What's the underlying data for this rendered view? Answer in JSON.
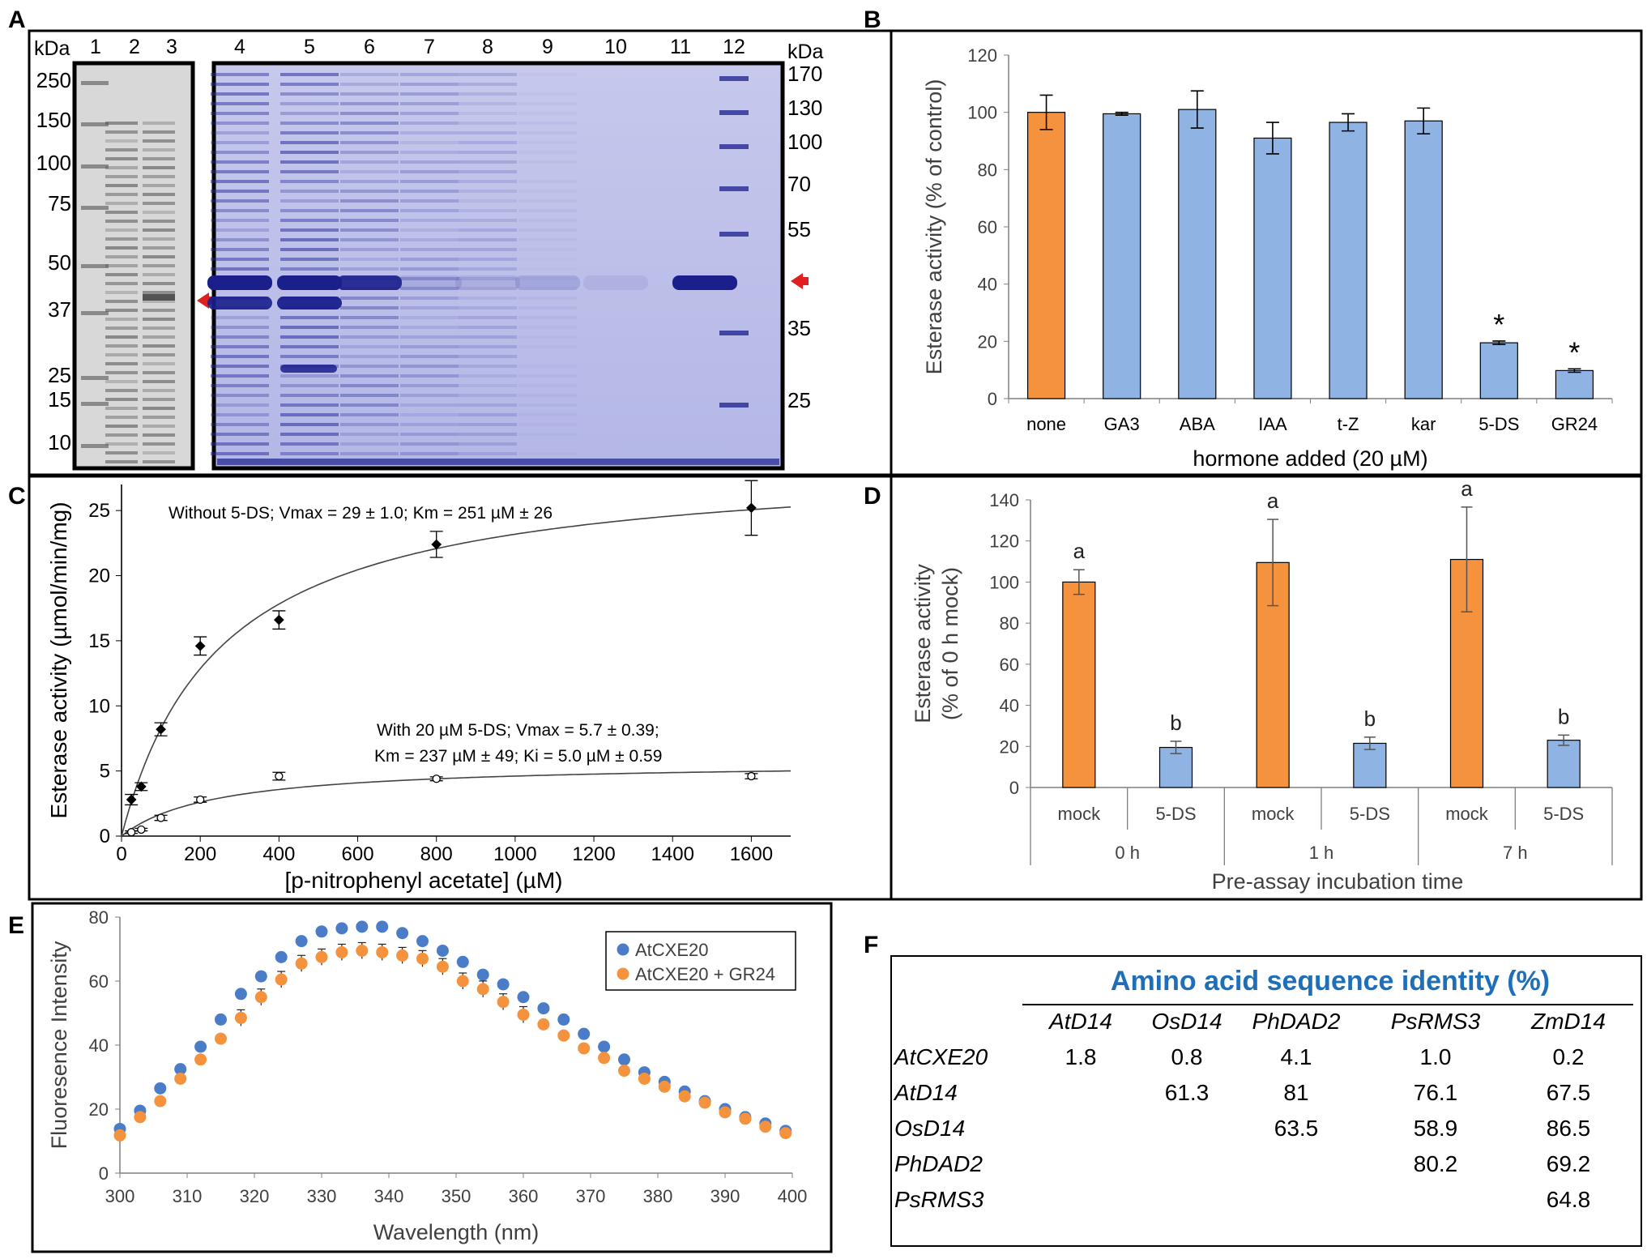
{
  "panel_labels": {
    "A": "A",
    "B": "B",
    "C": "C",
    "D": "D",
    "E": "E",
    "F": "F"
  },
  "gel": {
    "left_unit": "kDa",
    "right_unit": "kDa",
    "lanes": [
      "1",
      "2",
      "3",
      "4",
      "5",
      "6",
      "7",
      "8",
      "9",
      "10",
      "11",
      "12"
    ],
    "left_markers": [
      "250",
      "150",
      "100",
      "75",
      "50",
      "37",
      "25",
      "15",
      "10"
    ],
    "right_markers": [
      "170",
      "130",
      "100",
      "70",
      "55",
      "35",
      "25"
    ]
  },
  "chart_data": [
    {
      "id": "B",
      "type": "bar",
      "categories": [
        "none",
        "GA3",
        "ABA",
        "IAA",
        "t-Z",
        "kar",
        "5-DS",
        "GR24"
      ],
      "values": [
        100,
        99.5,
        101,
        91,
        96.5,
        97,
        19.5,
        9.8
      ],
      "errors": [
        6,
        0.5,
        6.5,
        5.5,
        3,
        4.5,
        0.6,
        0.6
      ],
      "significance": [
        "",
        "",
        "",
        "",
        "",
        "",
        "*",
        "*"
      ],
      "colors": [
        "#f4923e",
        "#8fb4e3",
        "#8fb4e3",
        "#8fb4e3",
        "#8fb4e3",
        "#8fb4e3",
        "#8fb4e3",
        "#8fb4e3"
      ],
      "xlabel": "hormone added (20  µM)",
      "ylabel": "Esterase activity (% of control)",
      "ylim": [
        0,
        120
      ],
      "yticks": [
        "0",
        "20",
        "40",
        "60",
        "80",
        "100",
        "120"
      ]
    },
    {
      "id": "C",
      "type": "scatter",
      "xlabel": "[p-nitrophenyl acetate] (µM)",
      "ylabel": "Esterase activity (µmol/min/mg)",
      "xlim": [
        0,
        1700
      ],
      "ylim": [
        0,
        27
      ],
      "xticks": [
        "0",
        "200",
        "400",
        "600",
        "800",
        "1000",
        "1200",
        "1400",
        "1600"
      ],
      "yticks": [
        "0",
        "5",
        "10",
        "15",
        "20",
        "25"
      ],
      "series": [
        {
          "name": "Without 5-DS",
          "marker": "filled",
          "x": [
            25,
            50,
            100,
            200,
            400,
            800,
            1600
          ],
          "y": [
            2.8,
            3.8,
            8.2,
            14.6,
            16.6,
            22.4,
            25.2
          ],
          "err": [
            0.4,
            0.3,
            0.5,
            0.7,
            0.7,
            1.0,
            2.1
          ],
          "fit": {
            "vmax": 29,
            "km": 251
          }
        },
        {
          "name": "With 20 µM 5-DS",
          "marker": "open",
          "x": [
            25,
            50,
            100,
            200,
            400,
            800,
            1600
          ],
          "y": [
            0.3,
            0.5,
            1.4,
            2.8,
            4.6,
            4.4,
            4.6
          ],
          "err": [
            0.1,
            0.1,
            0.2,
            0.2,
            0.3,
            0.15,
            0.2
          ],
          "fit": {
            "vmax": 5.7,
            "km": 237
          }
        }
      ],
      "annotations": {
        "without": "Without 5-DS; Vmax = 29 ± 1.0; Km = 251 µM ± 26",
        "with_line1": "With 20 µM 5-DS; Vmax = 5.7 ± 0.39;",
        "with_line2": "Km = 237 µM ± 49; Ki = 5.0 µM ± 0.59"
      }
    },
    {
      "id": "D",
      "type": "bar",
      "categories": [
        "mock",
        "5-DS",
        "mock",
        "5-DS",
        "mock",
        "5-DS"
      ],
      "groups": [
        "0 h",
        "1 h",
        "7 h"
      ],
      "values": [
        100,
        19.5,
        109.5,
        21.5,
        111,
        23
      ],
      "errors": [
        6,
        3,
        21,
        3,
        25.5,
        2.5
      ],
      "letters": [
        "a",
        "b",
        "a",
        "b",
        "a",
        "b"
      ],
      "colors": [
        "#f4923e",
        "#8fb4e3",
        "#f4923e",
        "#8fb4e3",
        "#f4923e",
        "#8fb4e3"
      ],
      "xlabel": "Pre-assay incubation time",
      "ylabel_line1": "Esterase activity",
      "ylabel_line2": "(% of 0 h mock)",
      "ylim": [
        0,
        140
      ],
      "yticks": [
        "0",
        "20",
        "40",
        "60",
        "80",
        "100",
        "120",
        "140"
      ]
    },
    {
      "id": "E",
      "type": "scatter",
      "xlabel": "Wavelength (nm)",
      "ylabel": "Fluoresence Intensity",
      "xlim": [
        300,
        400
      ],
      "ylim": [
        0,
        80
      ],
      "xticks": [
        "300",
        "310",
        "320",
        "330",
        "340",
        "350",
        "360",
        "370",
        "380",
        "390",
        "400"
      ],
      "yticks": [
        "0",
        "20",
        "40",
        "60",
        "80"
      ],
      "x": [
        300,
        303,
        306,
        309,
        312,
        315,
        318,
        321,
        324,
        327,
        330,
        333,
        336,
        339,
        342,
        345,
        348,
        351,
        354,
        357,
        360,
        363,
        366,
        369,
        372,
        375,
        378,
        381,
        384,
        387,
        390,
        393,
        396,
        399
      ],
      "series": [
        {
          "name": "AtCXE20",
          "color": "#4a7cc7",
          "y": [
            13.8,
            19.5,
            26.5,
            32.5,
            39.5,
            48,
            56,
            61.5,
            67.5,
            72.5,
            75.5,
            76.5,
            77,
            77,
            75,
            72.5,
            69.5,
            66,
            62,
            59,
            55,
            51.5,
            48,
            43.5,
            39.5,
            35.5,
            31.5,
            28.5,
            25.5,
            22.5,
            20,
            17.5,
            15.5,
            13.2
          ]
        },
        {
          "name": "AtCXE20 + GR24",
          "color": "#f4923e",
          "y": [
            11.8,
            17.5,
            22.5,
            29.5,
            35.5,
            42,
            48.5,
            55,
            60.5,
            65.5,
            67.5,
            69,
            69.5,
            69,
            68,
            67,
            64.5,
            60,
            57.5,
            53.5,
            49.5,
            46.5,
            43,
            39,
            36,
            32,
            29.5,
            27,
            24,
            22,
            19,
            17,
            14.5,
            12.5
          ]
        }
      ]
    }
  ],
  "table": {
    "title": "Amino acid sequence identity (%)",
    "columns": [
      "AtD14",
      "OsD14",
      "PhDAD2",
      "PsRMS3",
      "ZmD14"
    ],
    "rows": [
      {
        "name": "AtCXE20",
        "cells": [
          "1.8",
          "0.8",
          "4.1",
          "1.0",
          "0.2"
        ]
      },
      {
        "name": "AtD14",
        "cells": [
          "",
          "61.3",
          "81",
          "76.1",
          "67.5"
        ]
      },
      {
        "name": "OsD14",
        "cells": [
          "",
          "",
          "63.5",
          "58.9",
          "86.5"
        ]
      },
      {
        "name": "PhDAD2",
        "cells": [
          "",
          "",
          "",
          "80.2",
          "69.2"
        ]
      },
      {
        "name": "PsRMS3",
        "cells": [
          "",
          "",
          "",
          "",
          "64.8"
        ]
      }
    ]
  }
}
